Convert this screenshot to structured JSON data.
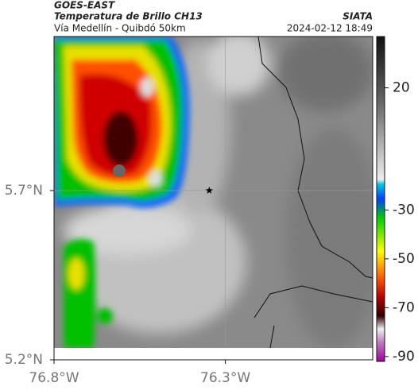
{
  "header": {
    "title": "GOES-EAST",
    "subtitle": "Temperatura de Brillo CH13",
    "route": "Vía Medellín - Quibdó 50km",
    "source": "SIATA",
    "timestamp": "2024-02-12 18:49"
  },
  "map": {
    "xlim": [
      -76.8,
      -75.87
    ],
    "ylim": [
      5.2,
      6.155
    ],
    "xticks": [
      {
        "value": -76.8,
        "label": "76.8°W"
      },
      {
        "value": -76.3,
        "label": "76.3°W"
      }
    ],
    "yticks": [
      {
        "value": 5.7,
        "label": "5.7°N"
      },
      {
        "value": 5.2,
        "label": "5.2°N"
      }
    ],
    "marker": {
      "lon": -76.347,
      "lat": 5.7
    }
  },
  "colorbar": {
    "clim": [
      41,
      -92
    ],
    "ticks": [
      20,
      -30,
      -50,
      -70,
      -90
    ]
  }
}
